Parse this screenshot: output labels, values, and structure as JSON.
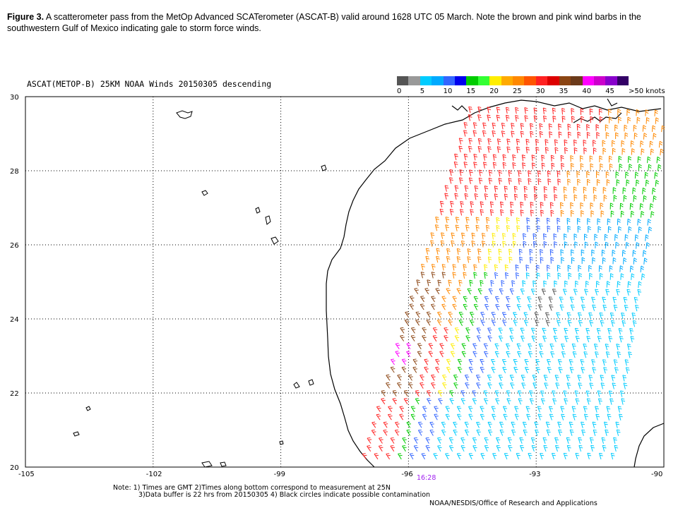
{
  "caption": {
    "label": "Figure 3.",
    "text": " A scatterometer pass from the MetOp Advanced SCATerometer (ASCAT-B) valid around 1628 UTC 05 March. Note the brown and pink wind barbs in the southwestern Gulf of Mexico indicating gale to storm force winds."
  },
  "map": {
    "title": "ASCAT(METOP-B) 25KM NOAA Winds 20150305 descending",
    "lat_ticks": [
      "30",
      "28",
      "26",
      "24",
      "22",
      "20"
    ],
    "lon_ticks": [
      "-105",
      "-102",
      "-99",
      "-96",
      "-93",
      "-90"
    ],
    "pass_time": "16:28"
  },
  "legend": {
    "colors": [
      "#555555",
      "#999999",
      "#00ccff",
      "#00aaff",
      "#3366ff",
      "#0000ee",
      "#00cc00",
      "#33ff33",
      "#ffee00",
      "#ffaa00",
      "#ff8800",
      "#ff5500",
      "#ff2222",
      "#dd0000",
      "#8b4513",
      "#6b3a1a",
      "#ff00ff",
      "#cc00cc",
      "#8800cc",
      "#330066"
    ],
    "labels": [
      "0",
      "5",
      "10",
      "15",
      "20",
      "25",
      "30",
      "35",
      "40",
      "45",
      ">50 knots"
    ]
  },
  "footnote": {
    "line1": "Note: 1) Times are GMT 2)Times along bottom correspond to measurement at 25N",
    "line2": "3)Data buffer is 22 hrs from 20150305 4) Black circles indicate possible contamination",
    "credit": "NOAA/NESDIS/Office of Research and Applications"
  }
}
